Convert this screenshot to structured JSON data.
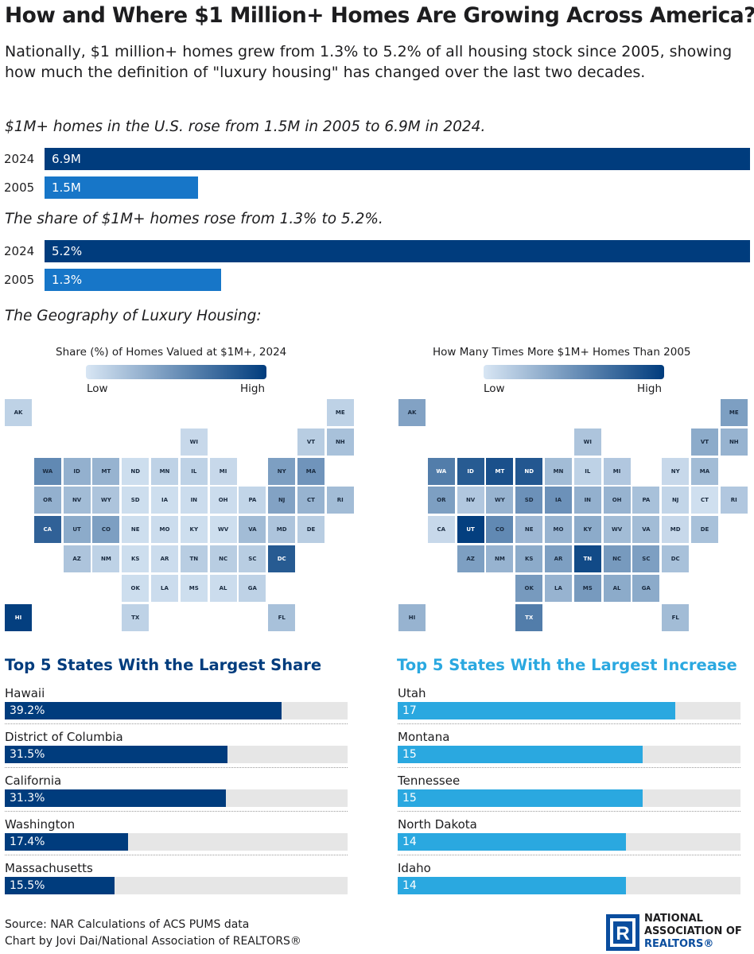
{
  "title": "How and Where $1 Million+ Homes Are Growing Across America?",
  "subtitle": "Nationally, $1 million+ homes grew from 1.3% to 5.2% of all housing stock since 2005, showing how much the definition of \"luxury housing\" has changed over the last two decades.",
  "colors": {
    "navy": "#003c7d",
    "mid_blue": "#1776c8",
    "light_blue": "#2aa8e0",
    "track": "#e6e6e6"
  },
  "chart_data": [
    {
      "type": "bar",
      "title": "$1M+ homes in the U.S. rose from 1.5M in 2005 to 6.9M in 2024.",
      "categories": [
        "2024",
        "2005"
      ],
      "values": [
        6.9,
        1.5
      ],
      "value_labels": [
        "6.9M",
        "1.5M"
      ],
      "xlim": [
        0,
        6.9
      ]
    },
    {
      "type": "bar",
      "title": "The share of $1M+ homes rose from 1.3% to 5.2%.",
      "categories": [
        "2024",
        "2005"
      ],
      "values": [
        5.2,
        1.3
      ],
      "value_labels": [
        "5.2%",
        "1.3%"
      ],
      "xlim": [
        0,
        5.2
      ]
    },
    {
      "type": "heatmap",
      "title": "Share (%) of Homes Valued at $1M+, 2024",
      "legend": {
        "low": "Low",
        "high": "High"
      },
      "scale_0_to_1": {
        "AK": 0.12,
        "ME": 0.12,
        "WI": 0.08,
        "VT": 0.15,
        "NH": 0.22,
        "WA": 0.55,
        "ID": 0.32,
        "MT": 0.3,
        "ND": 0.05,
        "MN": 0.12,
        "IL": 0.12,
        "MI": 0.08,
        "NY": 0.42,
        "MA": 0.48,
        "OR": 0.32,
        "NV": 0.25,
        "WY": 0.2,
        "SD": 0.05,
        "IA": 0.05,
        "IN": 0.06,
        "OH": 0.06,
        "PA": 0.1,
        "NJ": 0.4,
        "CT": 0.3,
        "RI": 0.25,
        "CA": 0.78,
        "UT": 0.35,
        "CO": 0.42,
        "NE": 0.05,
        "MO": 0.06,
        "KY": 0.05,
        "WV": 0.05,
        "VA": 0.25,
        "MD": 0.2,
        "DE": 0.15,
        "AZ": 0.2,
        "NM": 0.12,
        "KS": 0.05,
        "AR": 0.06,
        "TN": 0.15,
        "NC": 0.15,
        "SC": 0.15,
        "DC": 0.82,
        "OK": 0.05,
        "LA": 0.06,
        "MS": 0.05,
        "AL": 0.06,
        "GA": 0.12,
        "HI": 0.98,
        "TX": 0.12,
        "FL": 0.22
      }
    },
    {
      "type": "heatmap",
      "title": "How Many Times More $1M+ Homes Than 2005",
      "legend": {
        "low": "Low",
        "high": "High"
      },
      "scale_0_to_1": {
        "AK": 0.4,
        "ME": 0.42,
        "WI": 0.2,
        "VT": 0.35,
        "NH": 0.3,
        "WA": 0.62,
        "ID": 0.82,
        "MT": 0.88,
        "ND": 0.84,
        "MN": 0.25,
        "IL": 0.12,
        "MI": 0.18,
        "NY": 0.08,
        "MA": 0.25,
        "OR": 0.42,
        "NV": 0.18,
        "WY": 0.3,
        "SD": 0.5,
        "IA": 0.5,
        "IN": 0.32,
        "OH": 0.3,
        "PA": 0.22,
        "NJ": 0.1,
        "CT": 0.04,
        "RI": 0.18,
        "CA": 0.08,
        "UT": 0.98,
        "CO": 0.55,
        "NE": 0.28,
        "MO": 0.3,
        "KY": 0.35,
        "WV": 0.25,
        "VA": 0.25,
        "MD": 0.08,
        "DE": 0.22,
        "AZ": 0.42,
        "NM": 0.3,
        "KS": 0.35,
        "AR": 0.42,
        "TN": 0.92,
        "NC": 0.45,
        "SC": 0.42,
        "DC": 0.22,
        "OK": 0.45,
        "LA": 0.3,
        "MS": 0.45,
        "AL": 0.35,
        "GA": 0.35,
        "HI": 0.3,
        "TX": 0.62,
        "FL": 0.25
      }
    },
    {
      "type": "bar",
      "title": "Top 5 States With the Largest Share",
      "categories": [
        "Hawaii",
        "District of Columbia",
        "California",
        "Washington",
        "Massachusetts"
      ],
      "values": [
        39.2,
        31.5,
        31.3,
        17.4,
        15.5
      ],
      "value_labels": [
        "39.2%",
        "31.5%",
        "31.3%",
        "17.4%",
        "15.5%"
      ],
      "xlim": [
        0,
        48.5
      ]
    },
    {
      "type": "bar",
      "title": "Top 5 States With the Largest Increase",
      "categories": [
        "Utah",
        "Montana",
        "Tennessee",
        "North Dakota",
        "Idaho"
      ],
      "values": [
        17,
        15,
        15,
        14,
        14
      ],
      "value_labels": [
        "17",
        "15",
        "15",
        "14",
        "14"
      ],
      "xlim": [
        0,
        21
      ]
    }
  ],
  "geo_heading": "The Geography of Luxury Housing:",
  "source": "Source: NAR Calculations of ACS PUMS data",
  "credit": "Chart by Jovi Dai/National Association of REALTORS®",
  "logo": {
    "line1": "NATIONAL",
    "line2": "ASSOCIATION OF",
    "line3": "REALTORS®",
    "mark": "R"
  }
}
